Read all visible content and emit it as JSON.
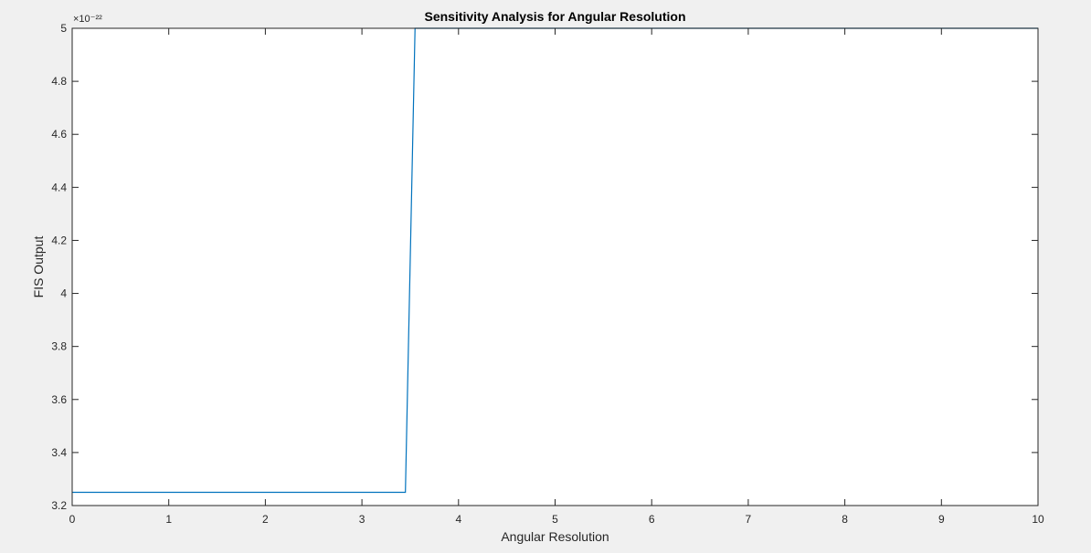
{
  "chart_data": {
    "type": "line",
    "title": "Sensitivity Analysis for Angular Resolution",
    "xlabel": "Angular Resolution",
    "ylabel": "FIS Output",
    "y_exponent_label": "×10⁻²²",
    "xlim": [
      0,
      10
    ],
    "ylim": [
      3.2,
      5.0
    ],
    "xticks": [
      "0",
      "1",
      "2",
      "3",
      "4",
      "5",
      "6",
      "7",
      "8",
      "9",
      "10"
    ],
    "yticks": [
      "3.2",
      "3.4",
      "3.6",
      "3.8",
      "4",
      "4.2",
      "4.4",
      "4.6",
      "4.8",
      "5"
    ],
    "grid": false,
    "series": [
      {
        "color": "#0072bd",
        "x": [
          0,
          3.45,
          3.55,
          10
        ],
        "y": [
          3.25,
          3.25,
          5.0,
          5.0
        ]
      }
    ]
  }
}
